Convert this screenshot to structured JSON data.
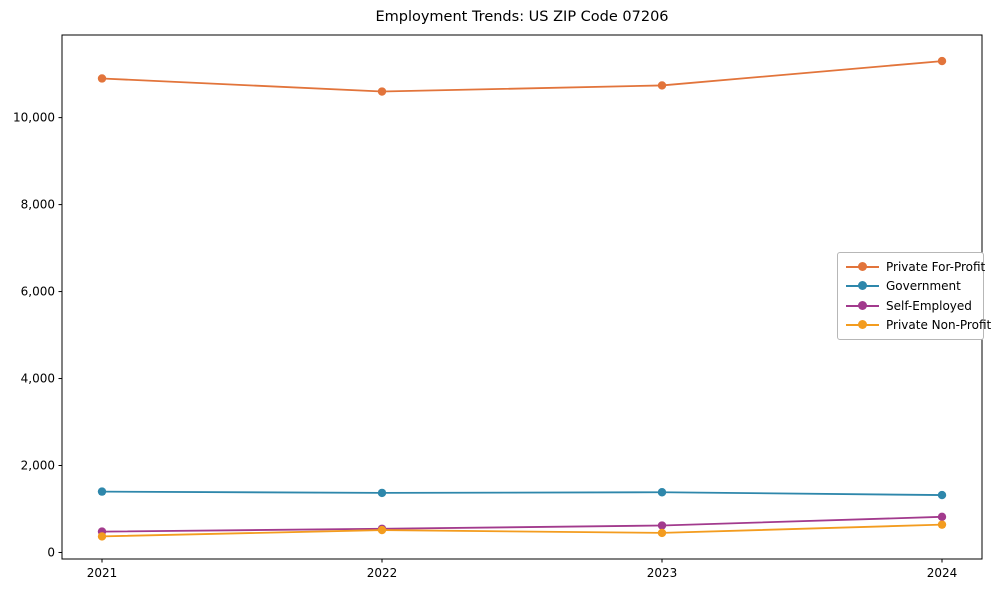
{
  "title": "Employment Trends: US ZIP Code 07206",
  "chart_data": {
    "type": "line",
    "title": "Employment Trends: US ZIP Code 07206",
    "categories": [
      "2021",
      "2022",
      "2023",
      "2024"
    ],
    "series": [
      {
        "name": "Private For-Profit",
        "color": "#e2743b",
        "values": [
          10900,
          10600,
          10740,
          11300
        ]
      },
      {
        "name": "Government",
        "color": "#2e87ab",
        "values": [
          1400,
          1370,
          1385,
          1320
        ]
      },
      {
        "name": "Self-Employed",
        "color": "#a23a8d",
        "values": [
          480,
          545,
          620,
          820
        ]
      },
      {
        "name": "Private Non-Profit",
        "color": "#f39c1f",
        "values": [
          370,
          515,
          450,
          640
        ]
      }
    ],
    "xlabel": "",
    "ylabel": "",
    "yticks": [
      0,
      2000,
      4000,
      6000,
      8000,
      10000
    ],
    "ytick_labels": [
      "0",
      "2,000",
      "4,000",
      "6,000",
      "8,000",
      "10,000"
    ],
    "ylim": [
      -150,
      11900
    ],
    "grid": false,
    "legend_position": "center-right",
    "axis_color": "#000000"
  }
}
